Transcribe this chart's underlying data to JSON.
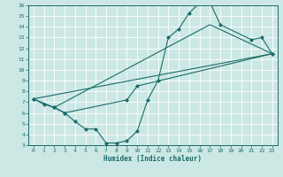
{
  "title": "",
  "xlabel": "Humidex (Indice chaleur)",
  "bg_color": "#cce8e4",
  "line_color": "#1a6b6b",
  "grid_color": "#ffffff",
  "xlim": [
    -0.5,
    23.5
  ],
  "ylim": [
    3,
    16
  ],
  "xticks": [
    0,
    1,
    2,
    3,
    4,
    5,
    6,
    7,
    8,
    9,
    10,
    11,
    12,
    13,
    14,
    15,
    16,
    17,
    18,
    19,
    20,
    21,
    22,
    23
  ],
  "yticks": [
    3,
    4,
    5,
    6,
    7,
    8,
    9,
    10,
    11,
    12,
    13,
    14,
    15,
    16
  ],
  "curve1_x": [
    0,
    1,
    2,
    3,
    4,
    5,
    6,
    7,
    8,
    9,
    10,
    11,
    12,
    13,
    14,
    15,
    16,
    17,
    18,
    21,
    22,
    23
  ],
  "curve1_y": [
    7.3,
    6.8,
    6.5,
    6.0,
    5.2,
    4.5,
    4.5,
    3.2,
    3.2,
    3.4,
    4.3,
    7.2,
    9.0,
    13.0,
    13.8,
    15.3,
    16.2,
    16.3,
    14.2,
    12.8,
    13.0,
    11.5
  ],
  "curve2_x": [
    0,
    2,
    3,
    9,
    10,
    23
  ],
  "curve2_y": [
    7.3,
    6.5,
    6.0,
    7.2,
    8.5,
    11.5
  ],
  "curve3_x": [
    0,
    23
  ],
  "curve3_y": [
    7.3,
    11.5
  ],
  "curve4_x": [
    2,
    17,
    23
  ],
  "curve4_y": [
    6.5,
    14.2,
    11.5
  ]
}
